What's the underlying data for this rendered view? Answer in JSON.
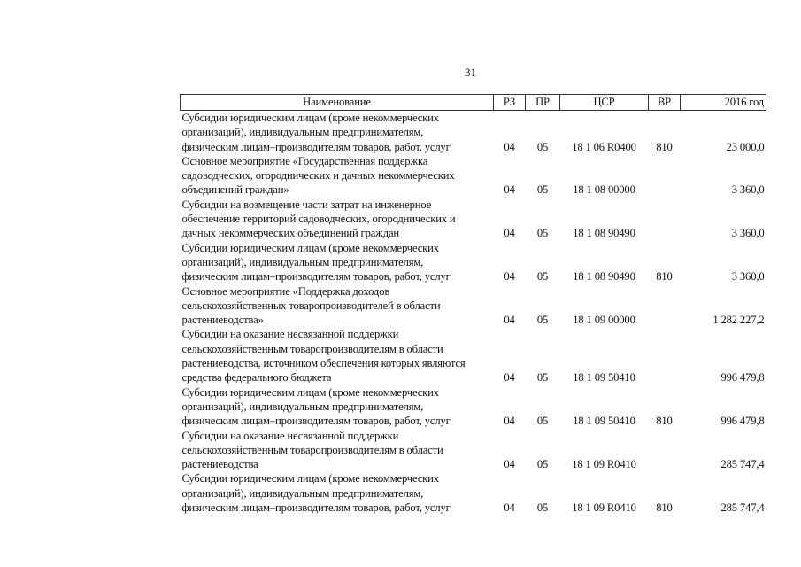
{
  "page_number": "31",
  "header": {
    "name": "Наименование",
    "rz": "РЗ",
    "pr": "ПР",
    "csr": "ЦСР",
    "vr": "ВР",
    "year": "2016 год"
  },
  "rows": [
    {
      "lines": [
        "Субсидии юридическим лицам (кроме некоммерческих",
        "организаций), индивидуальным предпринимателям,",
        "физическим лицам–производителям товаров, работ, услуг"
      ],
      "rz": "04",
      "pr": "05",
      "csr": "18 1 06 R0400",
      "vr": "810",
      "sum": "23 000,0"
    },
    {
      "lines": [
        "Основное мероприятие «Государственная поддержка",
        "садоводческих, огороднических и дачных некоммерческих",
        "объединений граждан»"
      ],
      "rz": "04",
      "pr": "05",
      "csr": "18 1 08 00000",
      "vr": "",
      "sum": "3 360,0"
    },
    {
      "lines": [
        "Субсидии на возмещение части затрат  на инженерное",
        "обеспечение территорий  садоводческих, огороднических и",
        "дачных некоммерческих объединений граждан"
      ],
      "rz": "04",
      "pr": "05",
      "csr": "18 1 08 90490",
      "vr": "",
      "sum": "3 360,0"
    },
    {
      "lines": [
        "Субсидии юридическим лицам (кроме некоммерческих",
        "организаций), индивидуальным предпринимателям,",
        "физическим лицам–производителям товаров, работ, услуг"
      ],
      "rz": "04",
      "pr": "05",
      "csr": "18 1 08 90490",
      "vr": "810",
      "sum": "3 360,0"
    },
    {
      "lines": [
        "Основное мероприятие «Поддержка доходов",
        "сельскохозяйственных товаропроизводителей в области",
        "растениеводства»"
      ],
      "rz": "04",
      "pr": "05",
      "csr": "18 1 09 00000",
      "vr": "",
      "sum": "1 282 227,2"
    },
    {
      "lines": [
        "Субсидии на оказание несвязанной поддержки",
        "сельскохозяйственным товаропроизводителям в области",
        "растениеводства, источником обеспечения которых являются",
        "средства федерального бюджета"
      ],
      "rz": "04",
      "pr": "05",
      "csr": "18 1 09 50410",
      "vr": "",
      "sum": "996 479,8"
    },
    {
      "lines": [
        "Субсидии юридическим лицам (кроме некоммерческих",
        "организаций), индивидуальным предпринимателям,",
        "физическим лицам–производителям товаров, работ, услуг"
      ],
      "rz": "04",
      "pr": "05",
      "csr": "18 1 09 50410",
      "vr": "810",
      "sum": "996 479,8"
    },
    {
      "lines": [
        "Субсидии на оказание несвязанной поддержки",
        "сельскохозяйственным товаропроизводителям в области",
        "растениеводства"
      ],
      "rz": "04",
      "pr": "05",
      "csr": "18 1 09 R0410",
      "vr": "",
      "sum": "285 747,4"
    },
    {
      "lines": [
        "Субсидии юридическим лицам (кроме некоммерческих",
        "организаций), индивидуальным предпринимателям,",
        "физическим лицам–производителям товаров, работ, услуг"
      ],
      "rz": "04",
      "pr": "05",
      "csr": "18 1 09 R0410",
      "vr": "810",
      "sum": "285 747,4"
    }
  ]
}
